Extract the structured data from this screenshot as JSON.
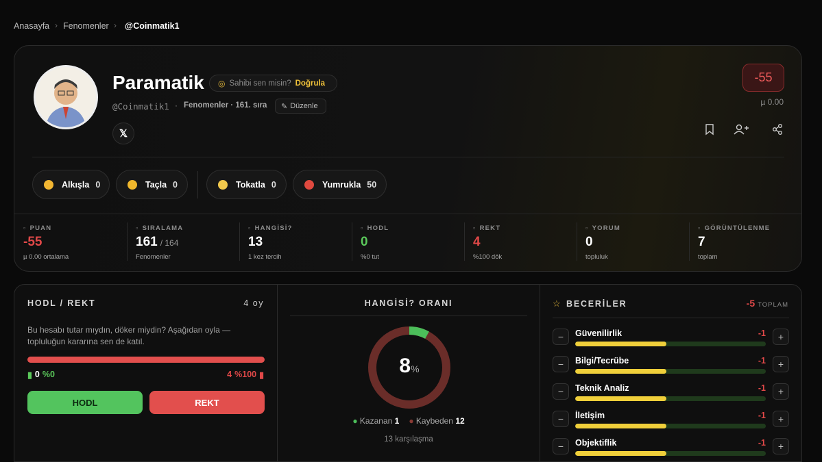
{
  "breadcrumb": [
    "Anasayfa",
    "Fenomenler",
    "@Coinmatik1"
  ],
  "profile": {
    "name": "Paramatik",
    "claim_question": "Sahibi sen misin?",
    "claim_action": "Doğrula",
    "handle": "@Coinmatik1",
    "meta": "Fenomenler · 161. sıra",
    "edit": "Düzenle",
    "score": -55,
    "mu": "µ 0.00"
  },
  "reactions": [
    {
      "label": "Alkışla",
      "count": 0
    },
    {
      "label": "Taçla",
      "count": 0
    },
    {
      "label": "Tokatla",
      "count": 0
    },
    {
      "label": "Yumrukla",
      "count": 50
    }
  ],
  "stats": [
    {
      "label": "PUAN",
      "value": -55,
      "sub": "µ 0.00 ortalama"
    },
    {
      "label": "SIRALAMA",
      "value": 161,
      "extra": "/ 164",
      "sub": "Fenomenler"
    },
    {
      "label": "HANGİSİ?",
      "value": 13,
      "sub": "1 kez tercih"
    },
    {
      "label": "HODL",
      "value": 0,
      "sub": "%0 tut"
    },
    {
      "label": "REKT",
      "value": 4,
      "sub": "%100 dök"
    },
    {
      "label": "YORUM",
      "value": 0,
      "sub": "topluluk"
    },
    {
      "label": "GÖRÜNTÜLENME",
      "value": 7,
      "sub": "toplam"
    }
  ],
  "hodl_rekt": {
    "title": "HODL / REKT",
    "votes": "4 oy",
    "description": "Bu hesabı tutar mıydın, döker miydin? Aşağıdan oyla — topluluğun kararına sen de katıl.",
    "hodl_count": 0,
    "hodl_pct": "%0",
    "rekt_count": 4,
    "rekt_pct": "%100",
    "hodl_button": "HODL",
    "rekt_button": "REKT"
  },
  "hangisi": {
    "title": "HANGİSİ? ORANI",
    "percent": 8,
    "percent_sign": "%",
    "winner_label": "Kazanan",
    "winner": 1,
    "loser_label": "Kaybeden",
    "loser": 12,
    "total": "13 karşılaşma"
  },
  "skills": {
    "title": "BECERİLER",
    "total": -5,
    "total_label": "TOPLAM",
    "items": [
      {
        "name": "Güvenilirlik",
        "score": -1
      },
      {
        "name": "Bilgi/Tecrübe",
        "score": -1
      },
      {
        "name": "Teknik Analiz",
        "score": -1
      },
      {
        "name": "İletişim",
        "score": -1
      },
      {
        "name": "Objektiflik",
        "score": -1
      }
    ]
  }
}
